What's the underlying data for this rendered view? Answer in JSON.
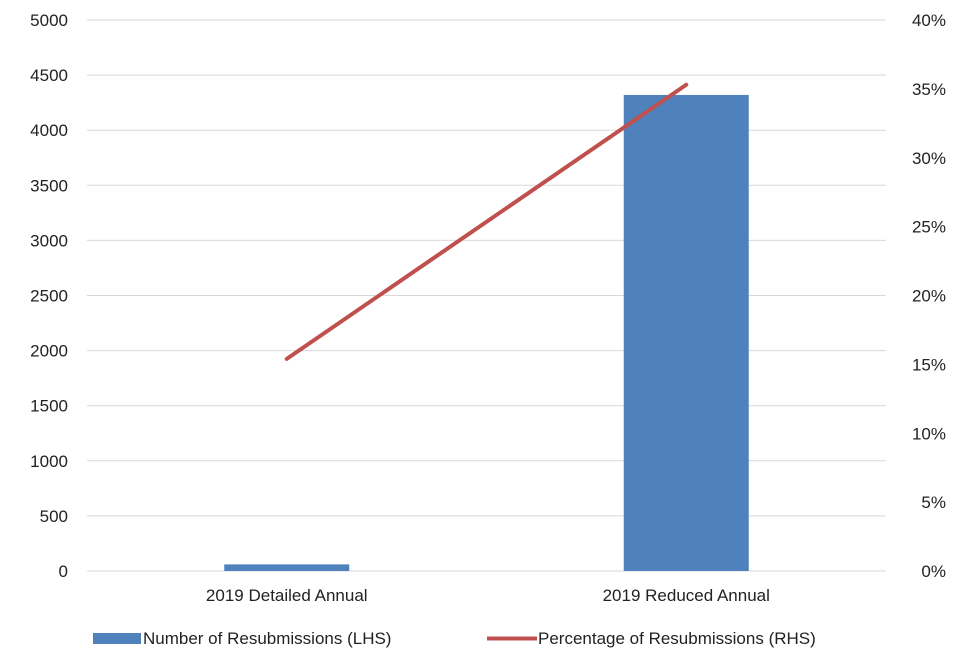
{
  "chart_data": {
    "type": "bar",
    "categories": [
      "2019 Detailed Annual",
      "2019 Reduced Annual"
    ],
    "series": [
      {
        "name": "Number of Resubmissions (LHS)",
        "type": "bar",
        "axis": "left",
        "color": "#4f81bd",
        "values": [
          60,
          4320
        ]
      },
      {
        "name": "Percentage of Resubmissions (RHS)",
        "type": "line",
        "axis": "right",
        "color": "#c0504d",
        "values": [
          15.4,
          35.3
        ]
      }
    ],
    "left_axis": {
      "ylim": [
        0,
        5000
      ],
      "ticks": [
        0,
        500,
        1000,
        1500,
        2000,
        2500,
        3000,
        3500,
        4000,
        4500,
        5000
      ],
      "tick_labels": [
        "0",
        "500",
        "1000",
        "1500",
        "2000",
        "2500",
        "3000",
        "3500",
        "4000",
        "4500",
        "5000"
      ]
    },
    "right_axis": {
      "ylim": [
        0,
        40
      ],
      "ticks": [
        0,
        5,
        10,
        15,
        20,
        25,
        30,
        35,
        40
      ],
      "tick_labels": [
        "0%",
        "5%",
        "10%",
        "15%",
        "20%",
        "25%",
        "30%",
        "35%",
        "40%"
      ]
    },
    "grid": true,
    "legend_position": "bottom"
  }
}
